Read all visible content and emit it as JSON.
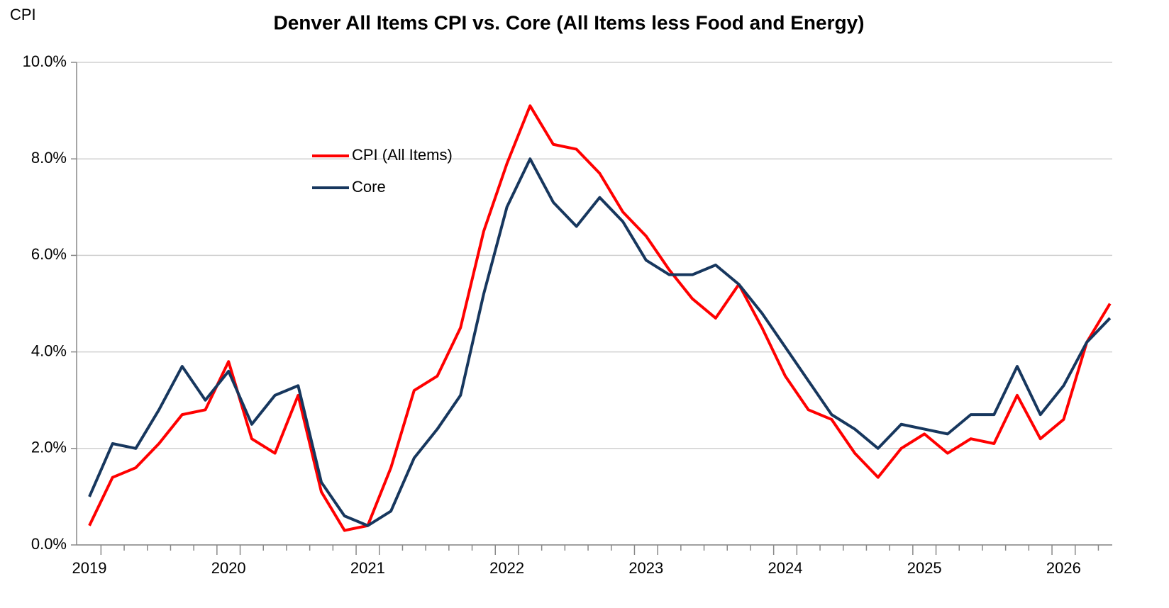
{
  "chart_data": {
    "type": "line",
    "title": "Denver All Items CPI vs. Core (All Items less Food and Energy)",
    "y_label": "CPI",
    "categories": [
      "2019",
      null,
      null,
      null,
      null,
      null,
      "2020",
      null,
      null,
      null,
      null,
      null,
      "2021",
      null,
      null,
      null,
      null,
      null,
      "2022",
      null,
      null,
      null,
      null,
      null,
      "2023",
      null,
      null,
      null,
      null,
      null,
      "2024",
      null,
      null,
      null,
      null,
      null,
      "2025",
      null,
      null,
      null,
      null,
      null,
      "2026",
      null,
      null
    ],
    "series": [
      {
        "name": "CPI (All Items)",
        "color": "#ff0000",
        "values": [
          0.4,
          1.4,
          1.6,
          2.1,
          2.7,
          2.8,
          3.8,
          2.2,
          1.9,
          3.1,
          1.1,
          0.3,
          0.4,
          1.6,
          3.2,
          3.5,
          4.5,
          6.5,
          7.9,
          9.1,
          8.3,
          8.2,
          7.7,
          6.9,
          6.4,
          5.7,
          5.1,
          4.7,
          5.4,
          4.5,
          3.5,
          2.8,
          2.6,
          1.9,
          1.4,
          2.0,
          2.3,
          1.9,
          2.2,
          2.1,
          3.1,
          2.2,
          2.6,
          4.2,
          5.0
        ]
      },
      {
        "name": "Core",
        "color": "#17375e",
        "values": [
          1.0,
          2.1,
          2.0,
          2.8,
          3.7,
          3.0,
          3.6,
          2.5,
          3.1,
          3.3,
          1.3,
          0.6,
          0.4,
          0.7,
          1.8,
          2.4,
          3.1,
          5.2,
          7.0,
          8.0,
          7.1,
          6.6,
          7.2,
          6.7,
          5.9,
          5.6,
          5.6,
          5.8,
          5.4,
          4.8,
          4.1,
          3.4,
          2.7,
          2.4,
          2.0,
          2.5,
          2.4,
          2.3,
          2.7,
          2.7,
          3.7,
          2.7,
          3.3,
          4.2,
          4.7
        ]
      }
    ],
    "ylim": [
      0,
      10
    ],
    "yticks": [
      {
        "value": 0,
        "label": "0.0%"
      },
      {
        "value": 2,
        "label": "2.0%"
      },
      {
        "value": 4,
        "label": "4.0%"
      },
      {
        "value": 6,
        "label": "6.0%"
      },
      {
        "value": 8,
        "label": "8.0%"
      },
      {
        "value": 10,
        "label": "10.0%"
      }
    ],
    "grid": true
  }
}
